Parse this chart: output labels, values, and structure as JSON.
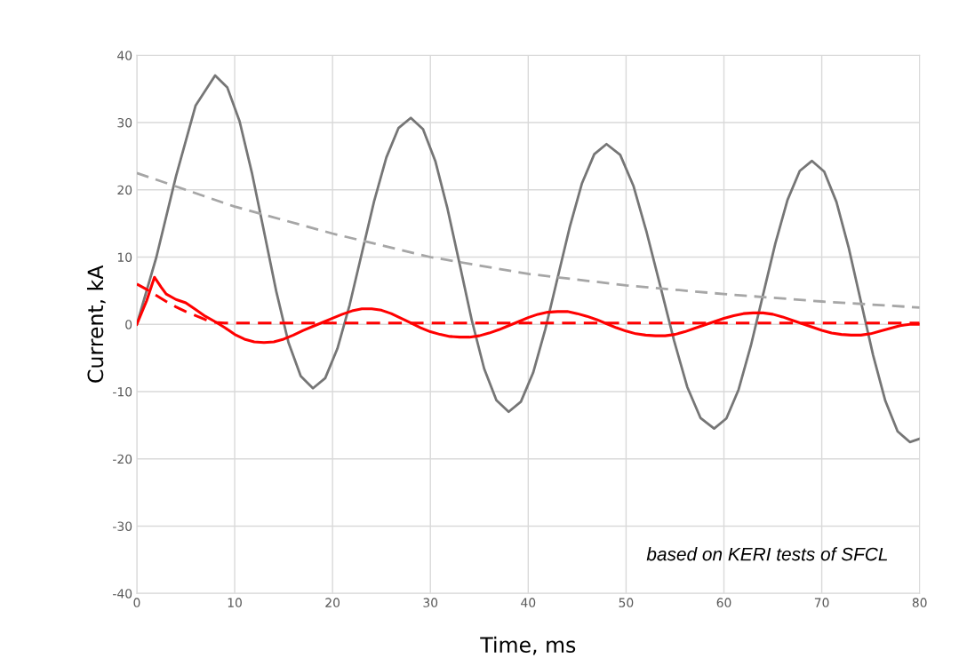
{
  "chart_data": {
    "type": "line",
    "xlabel": "Time, ms",
    "ylabel": "Current, kA",
    "xlim": [
      0,
      80
    ],
    "ylim": [
      -40,
      40
    ],
    "xticks": [
      0,
      10,
      20,
      30,
      40,
      50,
      60,
      70,
      80
    ],
    "yticks": [
      -40,
      -30,
      -20,
      -10,
      0,
      10,
      20,
      30,
      40
    ],
    "grid": true,
    "legend": false,
    "marker": "none",
    "annotations": [
      "based on KERI tests of SFCL"
    ],
    "series": [
      {
        "color": "#767676",
        "line_style": "solid",
        "x": [
          0,
          2,
          4,
          6,
          8,
          9.25,
          10.5,
          11.75,
          13,
          14.25,
          15.5,
          16.75,
          18,
          19.25,
          20.5,
          21.75,
          23,
          24.25,
          25.5,
          26.75,
          28,
          29.25,
          30.5,
          31.75,
          33,
          34.25,
          35.5,
          36.75,
          38,
          39.25,
          40.5,
          41.75,
          43,
          44.25,
          45.5,
          46.75,
          48,
          49.4,
          50.75,
          52.1,
          53.5,
          54.9,
          56.25,
          57.6,
          59,
          60.25,
          61.5,
          62.75,
          64,
          65.25,
          66.5,
          67.75,
          69,
          70.25,
          71.5,
          72.75,
          74,
          75.25,
          76.5,
          77.75,
          79,
          80
        ],
        "values": [
          0,
          10,
          22,
          32.5,
          37,
          35.2,
          30.2,
          22.6,
          13.8,
          4.9,
          -2.7,
          -7.7,
          -9.5,
          -8,
          -3.6,
          2.9,
          10.6,
          18.3,
          24.8,
          29.2,
          30.7,
          29,
          24.3,
          17.2,
          8.9,
          0.5,
          -6.6,
          -11.3,
          -13,
          -11.5,
          -7.2,
          -0.7,
          6.9,
          14.5,
          21,
          25.3,
          26.8,
          25.2,
          20.6,
          13.7,
          5.7,
          -2.4,
          -9.3,
          -13.9,
          -15.5,
          -14,
          -9.7,
          -3.2,
          4.4,
          12,
          18.5,
          22.8,
          24.3,
          22.7,
          18.2,
          11.4,
          3.4,
          -4.6,
          -11.4,
          -15.9,
          -17.5,
          -17
        ]
      },
      {
        "color": "#a6a6a6",
        "line_style": "dashed",
        "x": [
          0,
          10,
          20,
          30,
          40,
          50,
          60,
          70,
          80
        ],
        "values": [
          22.5,
          17.5,
          13.5,
          10,
          7.5,
          5.8,
          4.5,
          3.4,
          2.5
        ]
      },
      {
        "color": "#ff0000",
        "line_style": "solid",
        "x": [
          0,
          1,
          1.8,
          2.5,
          3,
          4,
          5,
          6,
          7,
          8,
          9,
          10,
          11,
          12,
          13,
          14,
          15,
          16,
          17,
          18,
          19,
          20,
          21,
          22,
          23,
          24,
          25,
          26,
          27,
          28,
          29,
          30,
          31,
          32,
          33,
          34,
          35,
          36,
          37,
          38,
          39,
          40,
          41,
          42,
          43,
          44,
          45,
          46,
          47,
          48,
          49,
          50,
          51,
          52,
          53,
          54,
          55,
          56,
          57,
          58,
          59,
          60,
          61,
          62,
          63,
          64,
          65,
          66,
          67,
          68,
          69,
          70,
          71,
          72,
          73,
          74,
          75,
          76,
          77,
          78,
          79,
          80
        ],
        "values": [
          0,
          3.5,
          7,
          5.5,
          4.5,
          3.7,
          3.2,
          2.2,
          1.2,
          0.4,
          -0.5,
          -1.5,
          -2.2,
          -2.6,
          -2.7,
          -2.6,
          -2.2,
          -1.6,
          -0.9,
          -0.3,
          0.3,
          0.9,
          1.5,
          2,
          2.3,
          2.3,
          2.1,
          1.6,
          0.9,
          0.2,
          -0.5,
          -1.1,
          -1.5,
          -1.8,
          -1.9,
          -1.9,
          -1.7,
          -1.3,
          -0.8,
          -0.2,
          0.4,
          1,
          1.5,
          1.8,
          1.9,
          1.9,
          1.6,
          1.2,
          0.7,
          0.1,
          -0.5,
          -1,
          -1.4,
          -1.6,
          -1.7,
          -1.7,
          -1.5,
          -1.1,
          -0.6,
          -0.1,
          0.4,
          0.9,
          1.3,
          1.6,
          1.7,
          1.7,
          1.5,
          1.1,
          0.6,
          0.1,
          -0.4,
          -0.9,
          -1.3,
          -1.5,
          -1.6,
          -1.6,
          -1.4,
          -1,
          -0.6,
          -0.2,
          0,
          0
        ]
      },
      {
        "color": "#ff0000",
        "line_style": "dashed",
        "x": [
          0,
          1,
          2,
          3,
          4,
          5,
          6,
          7,
          8,
          9,
          80
        ],
        "values": [
          6,
          5.2,
          4.3,
          3.4,
          2.6,
          1.9,
          1.3,
          0.7,
          0.3,
          0.2,
          0.2
        ]
      }
    ]
  }
}
